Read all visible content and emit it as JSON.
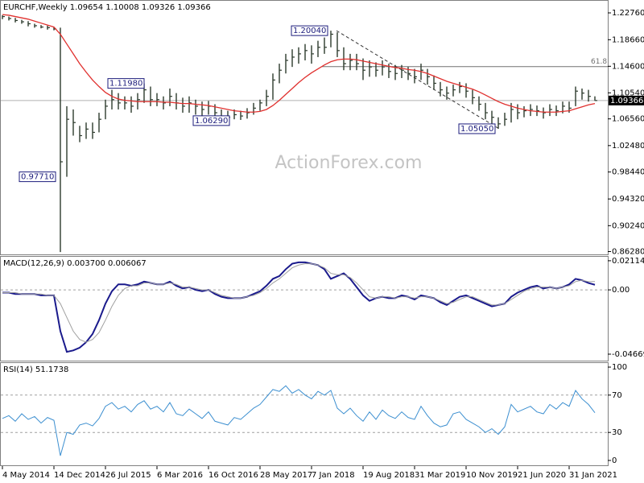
{
  "chart_data": [
    {
      "type": "ohlc",
      "title": "EURCHF,Weekly  1.09654 1.10008 1.09326 1.09366",
      "watermark": "ActionForex.com",
      "categories": [
        "4 May 2014",
        null,
        null,
        null,
        null,
        null,
        null,
        null,
        "14 Dec 2014",
        null,
        null,
        null,
        null,
        null,
        null,
        null,
        "26 Jul 2015",
        null,
        null,
        null,
        null,
        null,
        null,
        null,
        "6 Mar 2016",
        null,
        null,
        null,
        null,
        null,
        null,
        null,
        "16 Oct 2016",
        null,
        null,
        null,
        null,
        null,
        null,
        null,
        "28 May 2017",
        null,
        null,
        null,
        null,
        null,
        null,
        null,
        "7 Jan 2018",
        null,
        null,
        null,
        null,
        null,
        null,
        null,
        "19 Aug 2018",
        null,
        null,
        null,
        null,
        null,
        null,
        null,
        "31 Mar 2019",
        null,
        null,
        null,
        null,
        null,
        null,
        null,
        "10 Nov 2019",
        null,
        null,
        null,
        null,
        null,
        null,
        null,
        "21 Jun 2020",
        null,
        null,
        null,
        null,
        null,
        null,
        null,
        "31 Jan 2021",
        null,
        null,
        null,
        null
      ],
      "bar_color": "#2c3a2c",
      "high": [
        1.224,
        1.222,
        1.22,
        1.217,
        1.215,
        1.211,
        1.209,
        1.208,
        1.206,
        1.205,
        1.085,
        1.08,
        1.055,
        1.06,
        1.06,
        1.075,
        1.095,
        1.11,
        1.105,
        1.1,
        1.1,
        1.105,
        1.1198,
        1.115,
        1.105,
        1.1,
        1.112,
        1.105,
        1.098,
        1.1,
        1.095,
        1.092,
        1.093,
        1.088,
        1.08,
        1.078,
        1.08,
        1.078,
        1.082,
        1.09,
        1.095,
        1.11,
        1.135,
        1.15,
        1.165,
        1.172,
        1.175,
        1.18,
        1.178,
        1.185,
        1.19,
        1.2004,
        1.198,
        1.175,
        1.165,
        1.165,
        1.158,
        1.155,
        1.152,
        1.155,
        1.15,
        1.148,
        1.148,
        1.145,
        1.142,
        1.15,
        1.142,
        1.132,
        1.122,
        1.115,
        1.118,
        1.122,
        1.12,
        1.11,
        1.1,
        1.09,
        1.078,
        1.068,
        1.075,
        1.09,
        1.088,
        1.085,
        1.088,
        1.086,
        1.083,
        1.088,
        1.086,
        1.092,
        1.092,
        1.115,
        1.112,
        1.11,
        1.10008
      ],
      "low": [
        1.218,
        1.216,
        1.213,
        1.211,
        1.207,
        1.205,
        1.204,
        1.202,
        1.201,
        0.862,
        0.9771,
        1.04,
        1.03,
        1.035,
        1.035,
        1.045,
        1.065,
        1.08,
        1.08,
        1.08,
        1.075,
        1.08,
        1.09,
        1.085,
        1.085,
        1.08,
        1.085,
        1.08,
        1.075,
        1.075,
        1.072,
        1.07,
        1.072,
        1.065,
        1.064,
        1.0629,
        1.065,
        1.064,
        1.066,
        1.072,
        1.078,
        1.085,
        1.095,
        1.12,
        1.135,
        1.145,
        1.15,
        1.155,
        1.15,
        1.16,
        1.165,
        1.175,
        1.16,
        1.14,
        1.14,
        1.14,
        1.125,
        1.13,
        1.13,
        1.132,
        1.128,
        1.125,
        1.128,
        1.125,
        1.12,
        1.125,
        1.118,
        1.11,
        1.1,
        1.095,
        1.1,
        1.105,
        1.098,
        1.088,
        1.078,
        1.065,
        1.058,
        1.0505,
        1.055,
        1.06,
        1.065,
        1.068,
        1.07,
        1.07,
        1.066,
        1.07,
        1.07,
        1.074,
        1.075,
        1.085,
        1.095,
        1.092,
        1.09326
      ],
      "close": [
        1.222,
        1.219,
        1.216,
        1.214,
        1.211,
        1.208,
        1.206,
        1.205,
        1.203,
        1.0,
        1.065,
        1.06,
        1.04,
        1.05,
        1.045,
        1.065,
        1.085,
        1.095,
        1.09,
        1.09,
        1.085,
        1.095,
        1.11,
        1.095,
        1.095,
        1.09,
        1.1,
        1.09,
        1.085,
        1.09,
        1.085,
        1.08,
        1.085,
        1.075,
        1.07,
        1.068,
        1.072,
        1.07,
        1.075,
        1.082,
        1.09,
        1.1,
        1.125,
        1.14,
        1.155,
        1.16,
        1.165,
        1.17,
        1.165,
        1.175,
        1.175,
        1.195,
        1.17,
        1.15,
        1.155,
        1.15,
        1.14,
        1.145,
        1.14,
        1.145,
        1.138,
        1.135,
        1.14,
        1.135,
        1.13,
        1.14,
        1.13,
        1.12,
        1.11,
        1.105,
        1.11,
        1.115,
        1.108,
        1.098,
        1.088,
        1.075,
        1.068,
        1.058,
        1.065,
        1.08,
        1.075,
        1.078,
        1.08,
        1.078,
        1.075,
        1.08,
        1.078,
        1.085,
        1.082,
        1.108,
        1.105,
        1.1,
        1.09366
      ],
      "sma": {
        "color": "#e0302e",
        "values": [
          1.225,
          1.224,
          1.222,
          1.22,
          1.218,
          1.215,
          1.212,
          1.209,
          1.206,
          1.195,
          1.18,
          1.165,
          1.15,
          1.137,
          1.125,
          1.115,
          1.106,
          1.1,
          1.096,
          1.094,
          1.093,
          1.092,
          1.092,
          1.092,
          1.092,
          1.091,
          1.091,
          1.09,
          1.089,
          1.089,
          1.088,
          1.087,
          1.086,
          1.084,
          1.082,
          1.08,
          1.078,
          1.077,
          1.076,
          1.076,
          1.077,
          1.08,
          1.086,
          1.094,
          1.103,
          1.112,
          1.121,
          1.129,
          1.136,
          1.142,
          1.148,
          1.153,
          1.156,
          1.157,
          1.157,
          1.156,
          1.154,
          1.152,
          1.15,
          1.148,
          1.146,
          1.144,
          1.143,
          1.141,
          1.14,
          1.138,
          1.135,
          1.131,
          1.127,
          1.123,
          1.12,
          1.117,
          1.114,
          1.111,
          1.107,
          1.102,
          1.097,
          1.092,
          1.088,
          1.085,
          1.082,
          1.08,
          1.078,
          1.077,
          1.076,
          1.076,
          1.076,
          1.077,
          1.078,
          1.081,
          1.084,
          1.087,
          1.089
        ]
      },
      "ylim": [
        0.8585,
        1.2473
      ],
      "yticks": [
        {
          "value": 1.2276,
          "label": "1.22760"
        },
        {
          "value": 1.1866,
          "label": "1.18660"
        },
        {
          "value": 1.146,
          "label": "1.14600"
        },
        {
          "value": 1.1054,
          "label": "1.10540"
        },
        {
          "value": 1.0656,
          "label": "1.06560"
        },
        {
          "value": 1.0248,
          "label": "1.02480"
        },
        {
          "value": 0.9844,
          "label": "0.98440"
        },
        {
          "value": 0.9432,
          "label": "0.94320"
        },
        {
          "value": 0.9024,
          "label": "0.90240"
        },
        {
          "value": 0.8628,
          "label": "0.86280"
        }
      ],
      "last_price": 1.09366,
      "levels": [
        {
          "value": 1.1455,
          "label": "61.8"
        }
      ],
      "annotations": [
        {
          "value": 1.1198,
          "label": "1.11980"
        },
        {
          "value": 1.2004,
          "label": "1.20040"
        },
        {
          "value": 1.0629,
          "label": "1.06290"
        },
        {
          "value": 0.9771,
          "label": "0.97710"
        },
        {
          "value": 1.0505,
          "label": "1.05050"
        }
      ]
    },
    {
      "type": "line",
      "title": "MACD(12,26,9) 0.003700 0.006067",
      "series": [
        {
          "color": "#1a1a8c",
          "width": 2,
          "values": [
            -0.002,
            -0.002,
            -0.003,
            -0.003,
            -0.003,
            -0.003,
            -0.004,
            -0.004,
            -0.004,
            -0.03,
            -0.045,
            -0.044,
            -0.042,
            -0.038,
            -0.032,
            -0.022,
            -0.01,
            -0.001,
            0.004,
            0.004,
            0.003,
            0.004,
            0.006,
            0.005,
            0.004,
            0.004,
            0.006,
            0.003,
            0.001,
            0.002,
            0.0,
            -0.001,
            0.0,
            -0.003,
            -0.005,
            -0.006,
            -0.006,
            -0.006,
            -0.005,
            -0.003,
            -0.001,
            0.003,
            0.008,
            0.01,
            0.015,
            0.019,
            0.02,
            0.02,
            0.019,
            0.018,
            0.015,
            0.008,
            0.01,
            0.012,
            0.008,
            0.002,
            -0.004,
            -0.008,
            -0.006,
            -0.005,
            -0.006,
            -0.006,
            -0.004,
            -0.005,
            -0.007,
            -0.004,
            -0.005,
            -0.006,
            -0.009,
            -0.011,
            -0.008,
            -0.005,
            -0.004,
            -0.006,
            -0.008,
            -0.01,
            -0.012,
            -0.011,
            -0.01,
            -0.005,
            -0.002,
            0.0,
            0.002,
            0.003,
            0.001,
            0.002,
            0.001,
            0.002,
            0.004,
            0.008,
            0.007,
            0.005,
            0.0037
          ]
        },
        {
          "color": "#a0a0a0",
          "width": 1,
          "values": [
            -0.002,
            -0.002,
            -0.002,
            -0.003,
            -0.003,
            -0.003,
            -0.003,
            -0.004,
            -0.004,
            -0.01,
            -0.02,
            -0.03,
            -0.036,
            -0.038,
            -0.036,
            -0.031,
            -0.022,
            -0.012,
            -0.004,
            0.001,
            0.003,
            0.003,
            0.005,
            0.005,
            0.004,
            0.004,
            0.005,
            0.004,
            0.002,
            0.002,
            0.001,
            0.0,
            0.0,
            -0.002,
            -0.004,
            -0.005,
            -0.006,
            -0.006,
            -0.005,
            -0.004,
            -0.002,
            0.001,
            0.005,
            0.008,
            0.012,
            0.016,
            0.018,
            0.019,
            0.019,
            0.018,
            0.016,
            0.012,
            0.011,
            0.011,
            0.009,
            0.005,
            0.0,
            -0.005,
            -0.006,
            -0.005,
            -0.005,
            -0.006,
            -0.005,
            -0.005,
            -0.006,
            -0.005,
            -0.005,
            -0.006,
            -0.008,
            -0.01,
            -0.009,
            -0.007,
            -0.005,
            -0.005,
            -0.007,
            -0.009,
            -0.011,
            -0.011,
            -0.01,
            -0.007,
            -0.004,
            -0.001,
            0.001,
            0.002,
            0.002,
            0.002,
            0.001,
            0.002,
            0.003,
            0.006,
            0.007,
            0.006,
            0.006067
          ]
        }
      ],
      "ylim": [
        -0.0514,
        0.0246
      ],
      "yticks": [
        0.021146,
        {
          "value": 0,
          "label": "0.00"
        },
        -0.046699
      ],
      "levels": [
        0
      ]
    },
    {
      "type": "line",
      "title": "RSI(14) 51.1738",
      "series": [
        {
          "color": "#3c8fd0",
          "width": 1,
          "values": [
            45,
            48,
            42,
            50,
            44,
            47,
            40,
            46,
            43,
            5,
            30,
            28,
            38,
            40,
            37,
            45,
            58,
            62,
            55,
            58,
            52,
            60,
            64,
            55,
            58,
            52,
            62,
            50,
            48,
            55,
            50,
            45,
            52,
            42,
            40,
            38,
            46,
            44,
            50,
            56,
            60,
            68,
            76,
            74,
            80,
            72,
            76,
            70,
            66,
            74,
            70,
            75,
            56,
            50,
            56,
            48,
            42,
            52,
            44,
            54,
            48,
            45,
            52,
            46,
            44,
            58,
            48,
            40,
            36,
            38,
            50,
            52,
            44,
            40,
            36,
            30,
            34,
            28,
            36,
            60,
            52,
            55,
            58,
            52,
            50,
            60,
            55,
            62,
            58,
            75,
            66,
            60,
            51.1738
          ]
        }
      ],
      "ylim": [
        -5.2,
        105.2
      ],
      "yticks": [
        100,
        70,
        30,
        0
      ],
      "levels": [
        70,
        30
      ]
    }
  ]
}
